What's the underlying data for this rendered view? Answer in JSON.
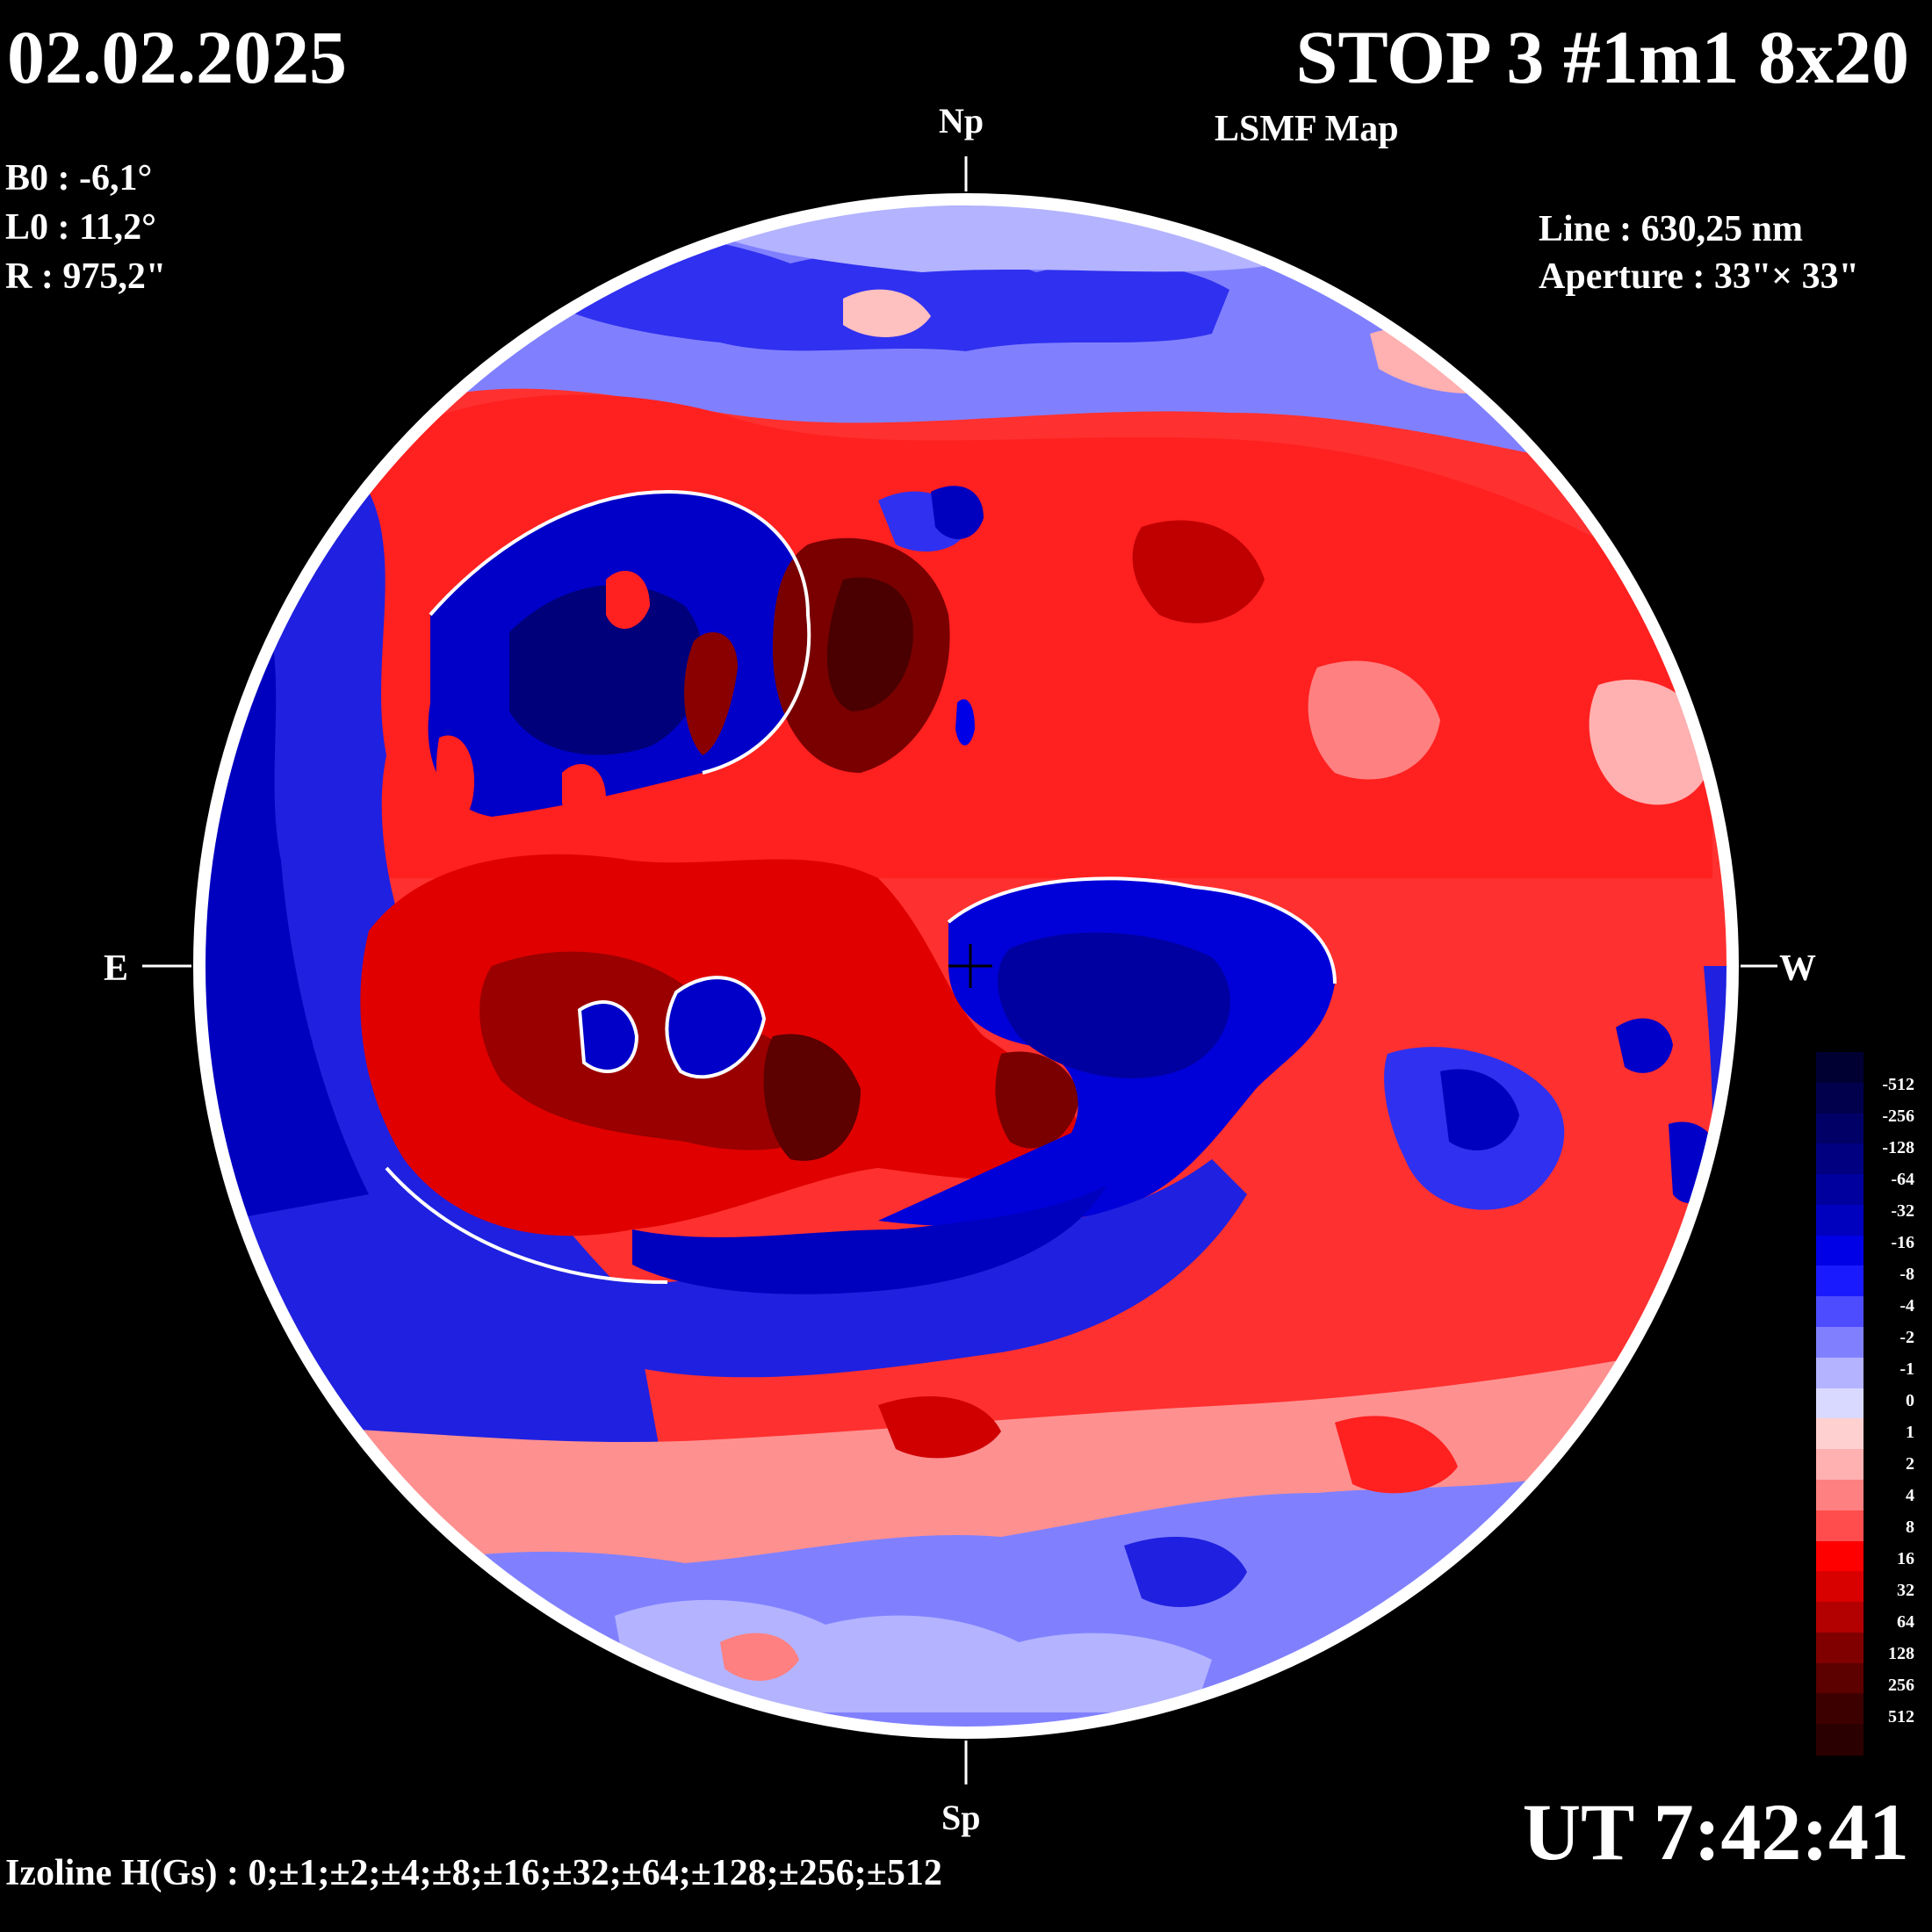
{
  "header": {
    "date": "02.02.2025",
    "title": "STOP 3 #1m1 8x20",
    "subtitle": "LSMF  Map"
  },
  "solar_params": {
    "b0": "B0 : -6,1°",
    "l0": "L0 : 11,2°",
    "r": "R  : 975,2\""
  },
  "instrument": {
    "line": "Line :  630,25 nm",
    "aperture": "Aperture : 33\"× 33\""
  },
  "orientation": {
    "north": "Np",
    "south": "Sp",
    "east": "E",
    "west": "W"
  },
  "time": "UT 7:42:41",
  "izoline": "Izoline H(Gs) : 0;±1;±2;±4;±8;±16;±32;±64;±128;±256;±512",
  "colorbar": {
    "labels": [
      "-512",
      "-256",
      "-128",
      "-64",
      "-32",
      "-16",
      "-8",
      "-4",
      "-2",
      "-1",
      "0",
      "1",
      "2",
      "4",
      "8",
      "16",
      "32",
      "64",
      "128",
      "256",
      "512"
    ],
    "colors": [
      "#000033",
      "#00004d",
      "#000066",
      "#000080",
      "#00009e",
      "#0000bf",
      "#0000e6",
      "#1a1aff",
      "#4d4dff",
      "#8080ff",
      "#b3b3ff",
      "#d9d9ff",
      "#ffd0d0",
      "#ffb0b0",
      "#ff8080",
      "#ff4d4d",
      "#ff0000",
      "#d90000",
      "#b30000",
      "#800000",
      "#5c0000",
      "#3d0000",
      "#2b0000"
    ]
  }
}
